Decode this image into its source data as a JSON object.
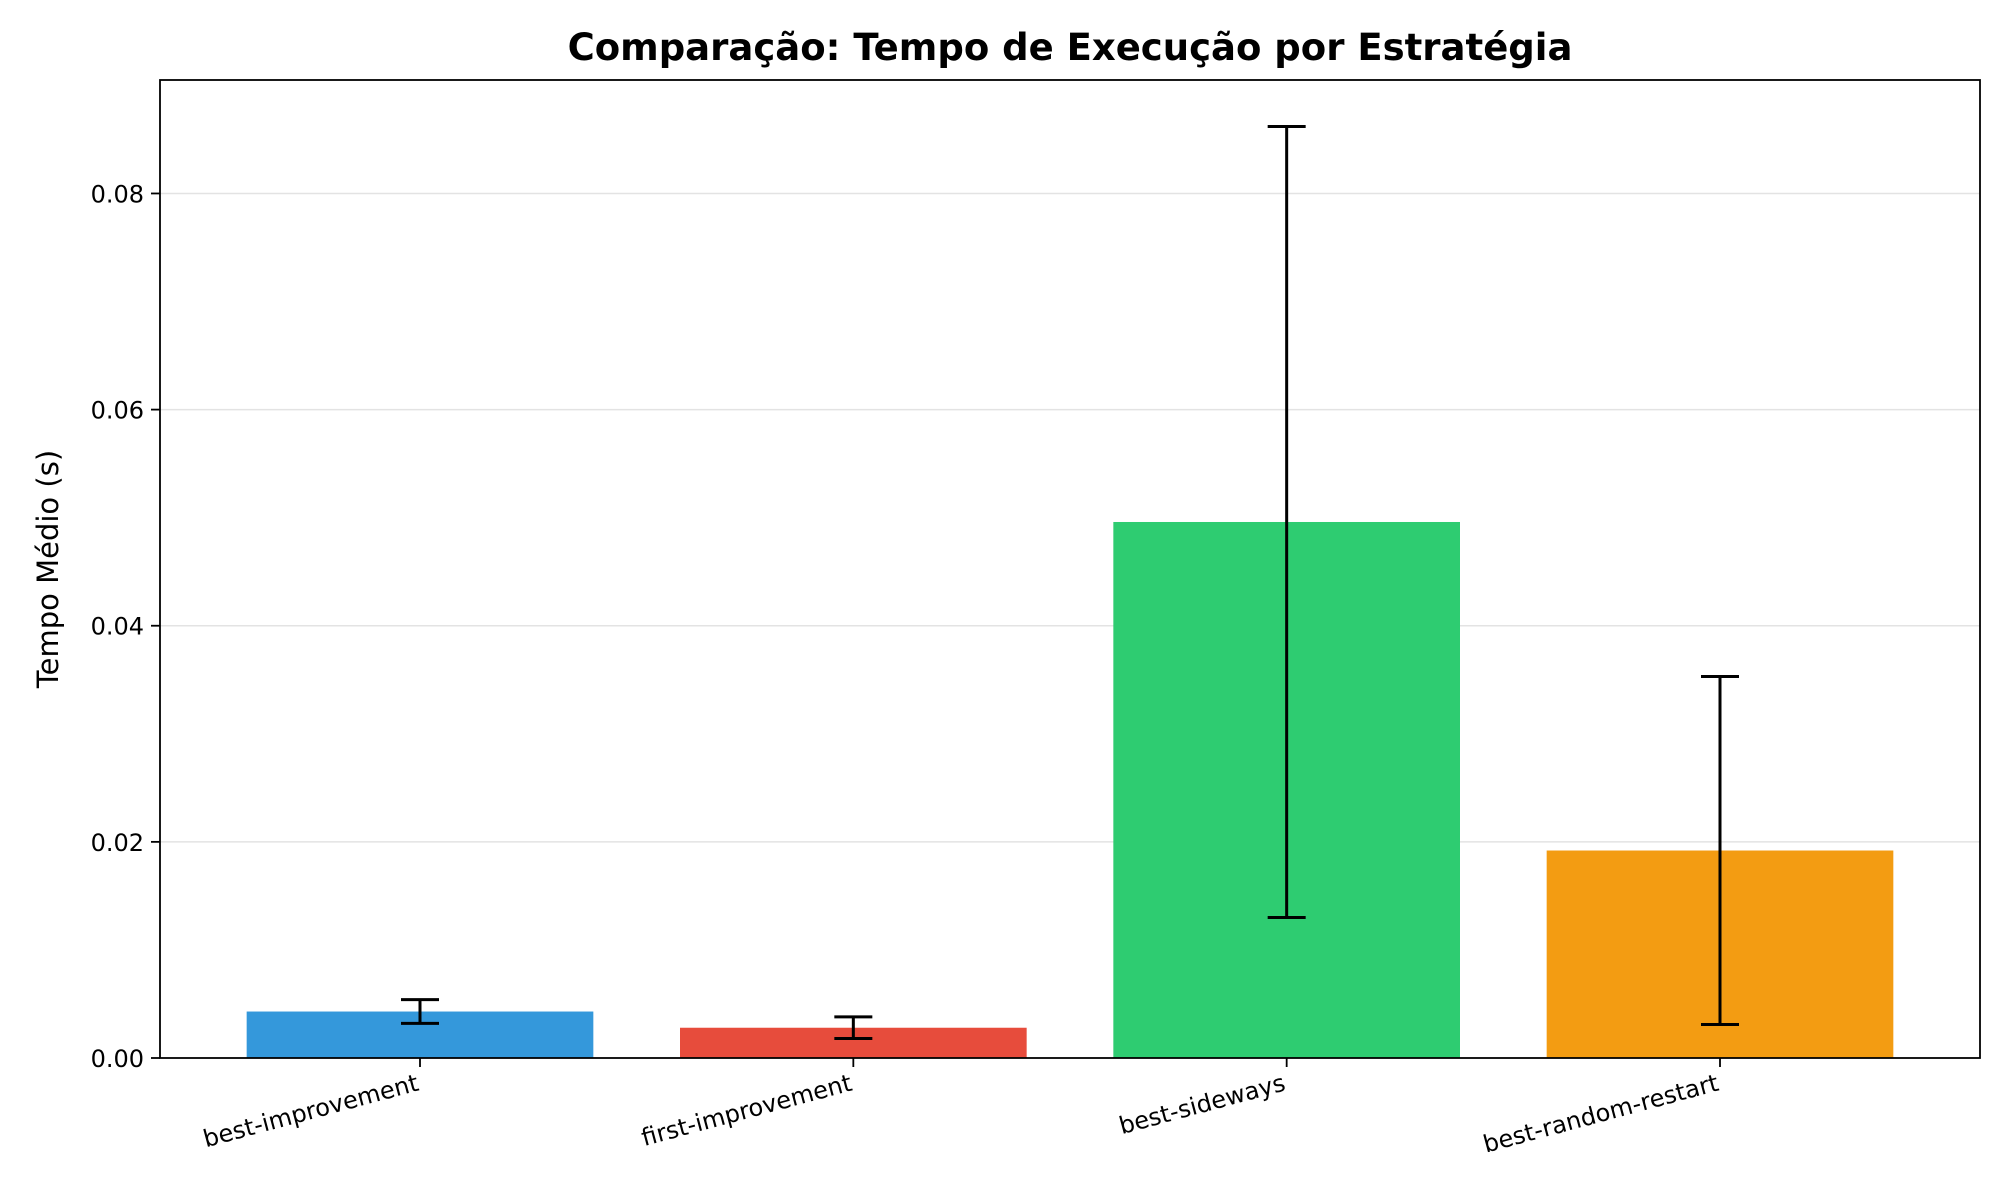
{
  "chart_data": {
    "type": "bar",
    "title": "Comparação: Tempo de Execução por Estratégia",
    "xlabel": "",
    "ylabel": "Tempo Médio (s)",
    "categories": [
      "best-improvement",
      "first-improvement",
      "best-sideways",
      "best-random-restart"
    ],
    "values": [
      0.0043,
      0.0028,
      0.0496,
      0.0192
    ],
    "error": [
      0.0011,
      0.001,
      0.0366,
      0.0161
    ],
    "colors": [
      "#3498db",
      "#e74c3c",
      "#2ecc71",
      "#f39c12"
    ],
    "ylim": [
      0,
      0.0905
    ],
    "yticks": [
      0.0,
      0.02,
      0.04,
      0.06,
      0.08
    ],
    "ytick_labels": [
      "0.00",
      "0.02",
      "0.04",
      "0.06",
      "0.08"
    ],
    "grid": "y",
    "legend": "none"
  }
}
